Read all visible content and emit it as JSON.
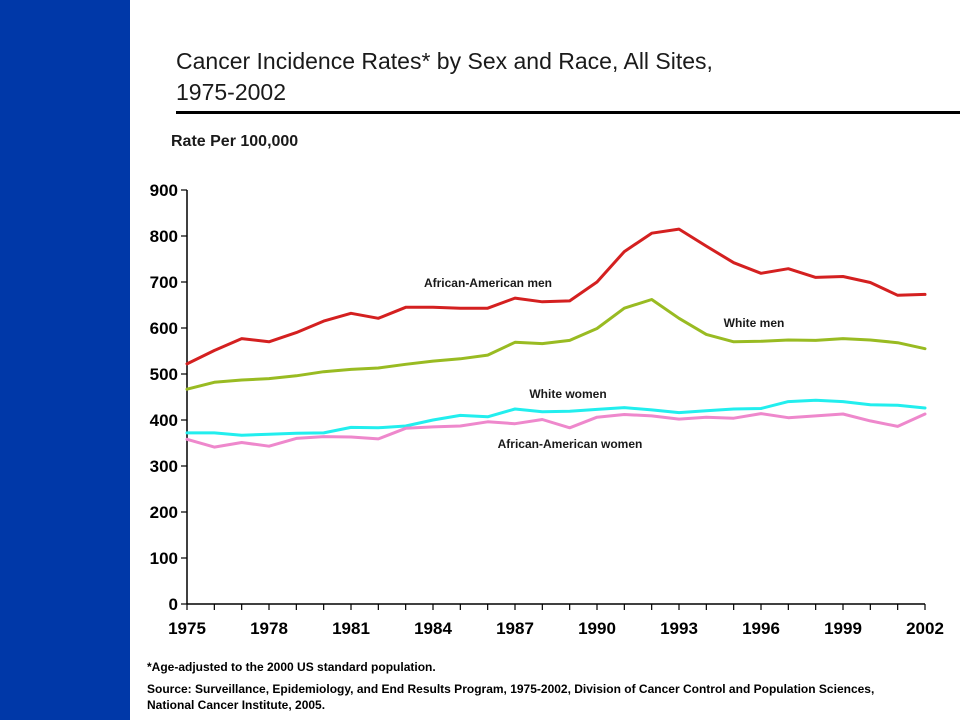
{
  "slide": {
    "title": "Cancer Incidence Rates* by Sex and Race, All Sites, 1975-2002",
    "title_line1": "Cancer Incidence Rates* by Sex and Race, All Sites,",
    "title_line2": "1975-2002",
    "footnote": "*Age-adjusted to the 2000 US standard population.",
    "source": "Source: Surveillance, Epidemiology, and End Results Program, 1975-2002, Division of Cancer Control and Population Sciences, National Cancer Institute, 2005.",
    "colors": {
      "sidebar": "#0038a8",
      "title_rule": "#000000"
    }
  },
  "chart_data": {
    "type": "line",
    "title": "Cancer Incidence Rates* by Sex and Race, All Sites, 1975-2002",
    "ylabel": "Rate Per 100,000",
    "xlabel": "",
    "ylim": [
      0,
      900
    ],
    "xlim": [
      1975,
      2002
    ],
    "yticks": [
      0,
      100,
      200,
      300,
      400,
      500,
      600,
      700,
      800,
      900
    ],
    "xticks": [
      1975,
      1978,
      1981,
      1984,
      1987,
      1990,
      1993,
      1996,
      1999,
      2002
    ],
    "grid": false,
    "x": [
      1975,
      1976,
      1977,
      1978,
      1979,
      1980,
      1981,
      1982,
      1983,
      1984,
      1985,
      1986,
      1987,
      1988,
      1989,
      1990,
      1991,
      1992,
      1993,
      1994,
      1995,
      1996,
      1997,
      1998,
      1999,
      2000,
      2001,
      2002
    ],
    "series": [
      {
        "name": "African-American men",
        "color": "#d42020",
        "values": [
          522,
          551,
          577,
          570,
          590,
          615,
          632,
          621,
          645,
          645,
          643,
          643,
          665,
          657,
          659,
          700,
          766,
          806,
          815,
          778,
          742,
          719,
          729,
          710,
          712,
          699,
          671,
          673
        ]
      },
      {
        "name": "White men",
        "color": "#99bb22",
        "values": [
          467,
          482,
          487,
          490,
          496,
          505,
          510,
          513,
          521,
          528,
          533,
          541,
          569,
          566,
          573,
          599,
          643,
          662,
          621,
          586,
          570,
          571,
          574,
          573,
          577,
          574,
          568,
          555
        ]
      },
      {
        "name": "White women",
        "color": "#22eeee",
        "values": [
          372,
          372,
          367,
          369,
          371,
          372,
          384,
          383,
          387,
          400,
          410,
          407,
          424,
          418,
          419,
          423,
          427,
          422,
          416,
          420,
          424,
          425,
          440,
          443,
          440,
          433,
          432,
          426
        ]
      },
      {
        "name": "African-American women",
        "color": "#ee88cc",
        "values": [
          358,
          341,
          351,
          343,
          360,
          364,
          363,
          359,
          382,
          385,
          387,
          396,
          392,
          401,
          383,
          406,
          412,
          409,
          402,
          406,
          404,
          414,
          405,
          409,
          413,
          398,
          386,
          413
        ]
      }
    ],
    "annotations": [
      {
        "text": "African-American men",
        "series": 0
      },
      {
        "text": "White men",
        "series": 1
      },
      {
        "text": "White women",
        "series": 2
      },
      {
        "text": "African-American women",
        "series": 3
      }
    ]
  }
}
